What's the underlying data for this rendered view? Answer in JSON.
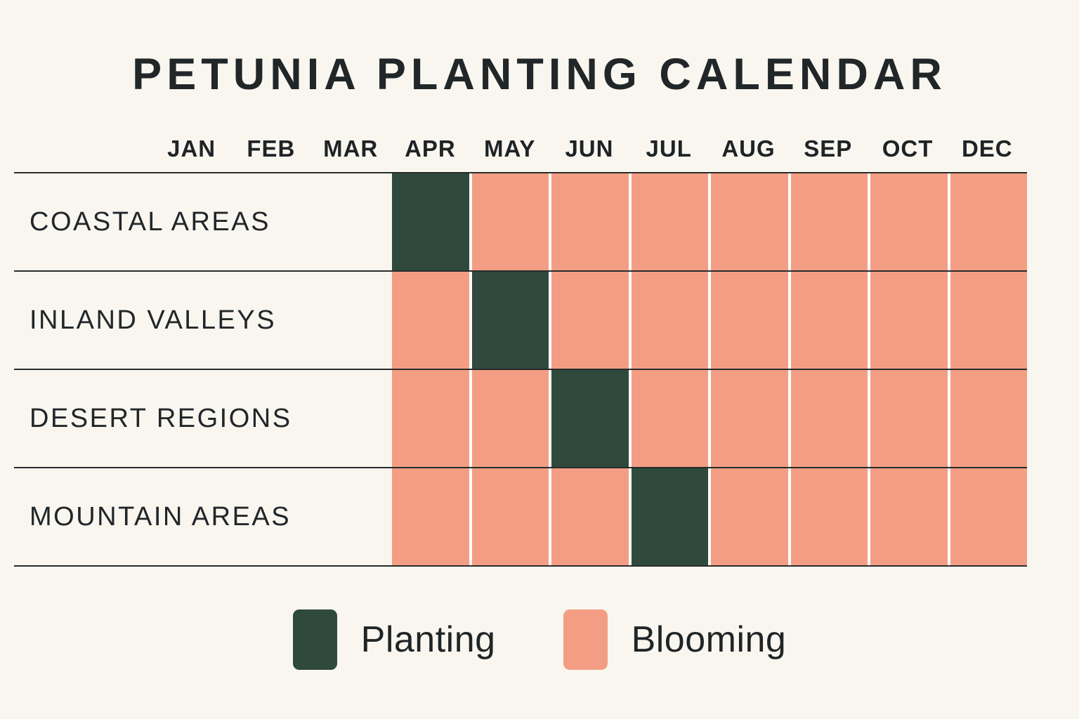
{
  "title": "PETUNIA PLANTING CALENDAR",
  "months": [
    "JAN",
    "FEB",
    "MAR",
    "APR",
    "MAY",
    "JUN",
    "JUL",
    "AUG",
    "SEP",
    "OCT",
    "DEC"
  ],
  "regions": [
    {
      "label": "COASTAL AREAS",
      "cells": [
        "planting",
        "blooming",
        "blooming",
        "blooming",
        "blooming",
        "blooming",
        "blooming",
        "blooming"
      ]
    },
    {
      "label": "INLAND VALLEYS",
      "cells": [
        "blooming",
        "planting",
        "blooming",
        "blooming",
        "blooming",
        "blooming",
        "blooming",
        "blooming"
      ]
    },
    {
      "label": "DESERT REGIONS",
      "cells": [
        "blooming",
        "blooming",
        "planting",
        "blooming",
        "blooming",
        "blooming",
        "blooming",
        "blooming"
      ]
    },
    {
      "label": "MOUNTAIN AREAS",
      "cells": [
        "blooming",
        "blooming",
        "blooming",
        "planting",
        "blooming",
        "blooming",
        "blooming",
        "blooming"
      ]
    }
  ],
  "legend": {
    "items": [
      {
        "label": "Planting",
        "key": "planting",
        "color": "#2F4A3D"
      },
      {
        "label": "Blooming",
        "key": "blooming",
        "color": "#F39E84"
      }
    ]
  },
  "colors": {
    "planting": "#2F4A3D",
    "blooming": "#F39E84",
    "background": "#F9F6EF",
    "text": "#212628",
    "grid_line": "#272C2C",
    "cell_gap": "#FFFDF9"
  },
  "chart_data": {
    "type": "table",
    "title": "PETUNIA PLANTING CALENDAR",
    "header_months": [
      "JAN",
      "FEB",
      "MAR",
      "APR",
      "MAY",
      "JUN",
      "JUL",
      "AUG",
      "SEP",
      "OCT",
      "DEC"
    ],
    "cell_columns": [
      "APR",
      "MAY",
      "JUN",
      "JUL",
      "AUG",
      "SEP",
      "OCT",
      "DEC"
    ],
    "rows": [
      {
        "label": "COASTAL AREAS",
        "planting_months": [
          "APR"
        ],
        "blooming_months": [
          "MAY",
          "JUN",
          "JUL",
          "AUG",
          "SEP",
          "OCT",
          "DEC"
        ]
      },
      {
        "label": "INLAND VALLEYS",
        "planting_months": [
          "MAY"
        ],
        "blooming_months": [
          "APR",
          "JUN",
          "JUL",
          "AUG",
          "SEP",
          "OCT",
          "DEC"
        ]
      },
      {
        "label": "DESERT REGIONS",
        "planting_months": [
          "JUN"
        ],
        "blooming_months": [
          "APR",
          "MAY",
          "JUL",
          "AUG",
          "SEP",
          "OCT",
          "DEC"
        ]
      },
      {
        "label": "MOUNTAIN AREAS",
        "planting_months": [
          "JUL"
        ],
        "blooming_months": [
          "APR",
          "MAY",
          "JUN",
          "AUG",
          "SEP",
          "OCT",
          "DEC"
        ]
      }
    ],
    "legend": [
      {
        "label": "Planting",
        "color": "#2F4A3D"
      },
      {
        "label": "Blooming",
        "color": "#F39E84"
      }
    ],
    "layout": {
      "legend_position": "bottom",
      "grid": "row-separators",
      "empty_label_columns": [
        "JAN",
        "FEB",
        "MAR"
      ]
    }
  }
}
